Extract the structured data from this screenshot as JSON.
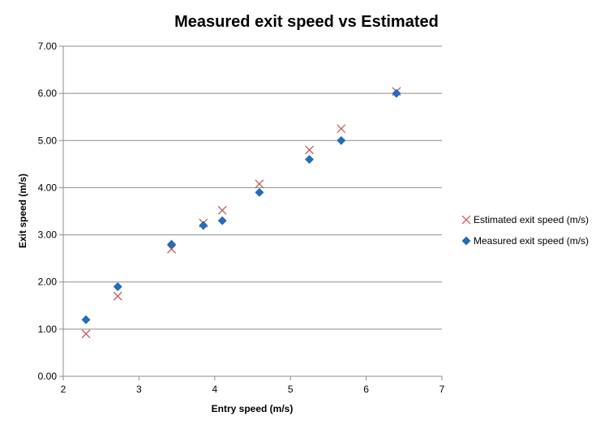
{
  "chart_data": {
    "type": "scatter",
    "title": "Measured exit speed vs Estimated",
    "xlabel": "Entry speed (m/s)",
    "ylabel": "Exit speed (m/s)",
    "xlim": [
      2,
      7
    ],
    "ylim": [
      0,
      7
    ],
    "x_ticks": [
      "2",
      "3",
      "4",
      "5",
      "6",
      "7"
    ],
    "y_ticks": [
      "0.00",
      "1.00",
      "2.00",
      "3.00",
      "4.00",
      "5.00",
      "6.00",
      "7.00"
    ],
    "grid": "horizontal",
    "legend_position": "right",
    "series": [
      {
        "name": "Estimated exit speed (m/s)",
        "marker": "x",
        "color": "#C0504D",
        "points": [
          {
            "x": 2.3,
            "y": 0.9
          },
          {
            "x": 2.72,
            "y": 1.7
          },
          {
            "x": 3.43,
            "y": 2.7
          },
          {
            "x": 3.85,
            "y": 3.25
          },
          {
            "x": 4.1,
            "y": 3.52
          },
          {
            "x": 4.59,
            "y": 4.08
          },
          {
            "x": 5.25,
            "y": 4.8
          },
          {
            "x": 5.67,
            "y": 5.25
          },
          {
            "x": 6.4,
            "y": 6.04
          }
        ]
      },
      {
        "name": "Measured exit speed (m/s)",
        "marker": "diamond",
        "color": "#1F6FBF",
        "points": [
          {
            "x": 2.3,
            "y": 1.2
          },
          {
            "x": 2.72,
            "y": 1.9
          },
          {
            "x": 3.43,
            "y": 2.8
          },
          {
            "x": 3.85,
            "y": 3.2
          },
          {
            "x": 4.1,
            "y": 3.3
          },
          {
            "x": 4.59,
            "y": 3.9
          },
          {
            "x": 5.25,
            "y": 4.6
          },
          {
            "x": 5.67,
            "y": 5.0
          },
          {
            "x": 6.4,
            "y": 6.0
          }
        ]
      }
    ]
  }
}
